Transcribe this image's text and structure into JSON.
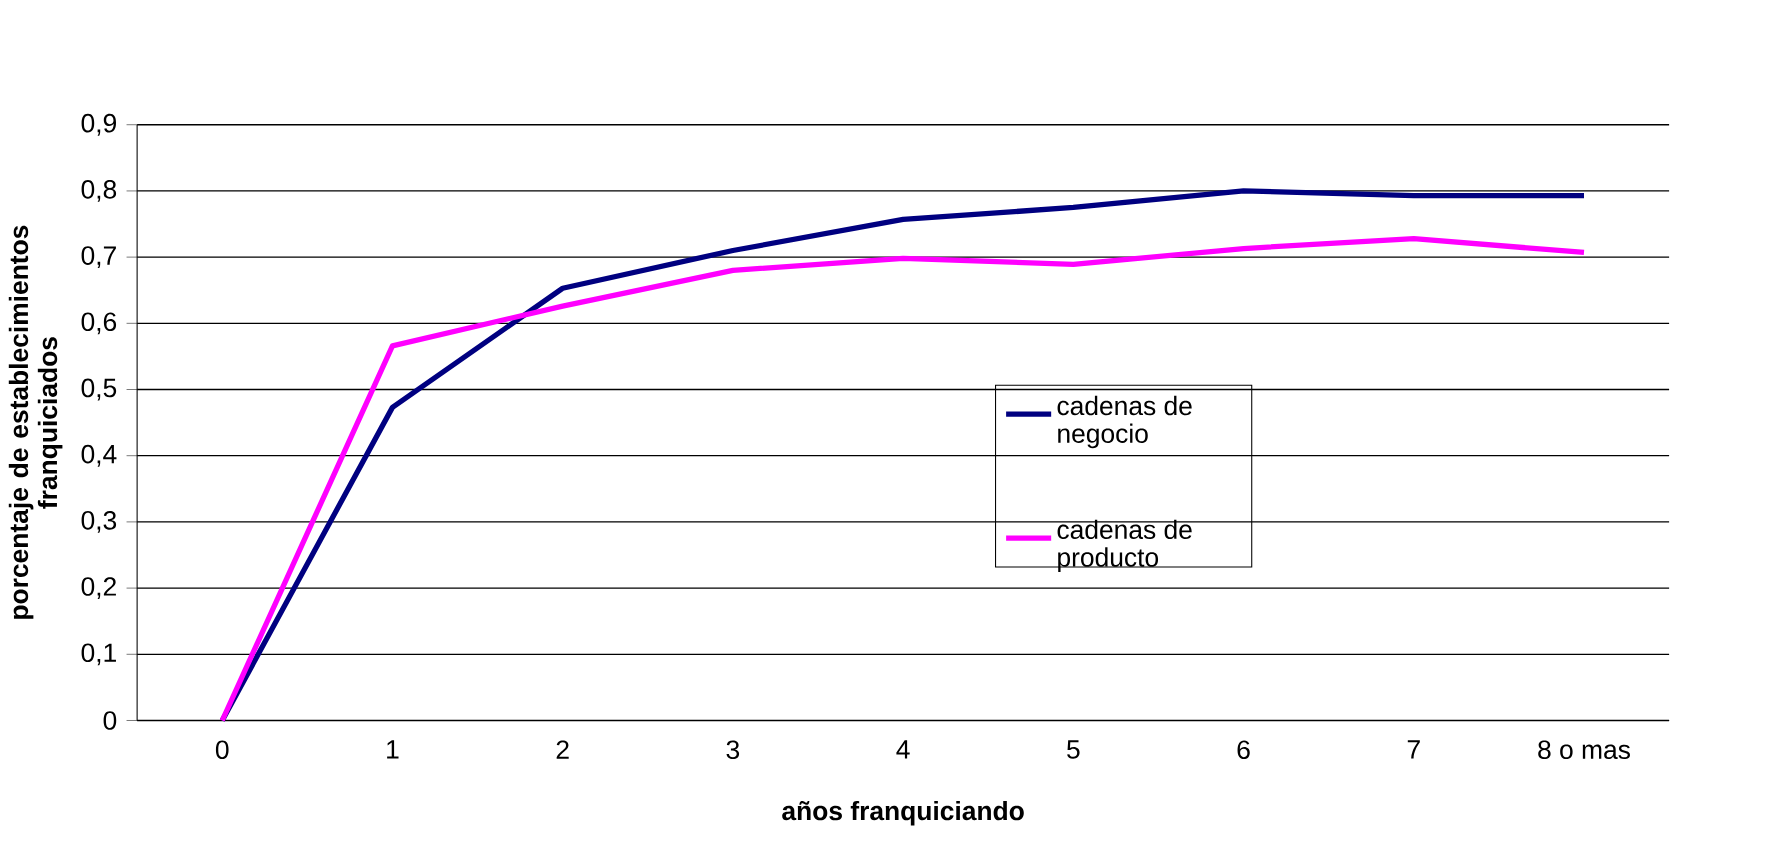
{
  "chart_data": {
    "type": "line",
    "xlabel": "años franquiciando",
    "ylabel": "porcentaje de establecimientos franquiciados",
    "categories": [
      "0",
      "1",
      "2",
      "3",
      "4",
      "5",
      "6",
      "7",
      "8 o mas"
    ],
    "series": [
      {
        "name": "cadenas de negocio",
        "color": "#000080",
        "values": [
          0,
          0.473,
          0.653,
          0.71,
          0.757,
          0.775,
          0.8,
          0.793,
          0.793
        ]
      },
      {
        "name": "cadenas de producto",
        "color": "#ff00ff",
        "values": [
          0,
          0.566,
          0.626,
          0.68,
          0.698,
          0.689,
          0.713,
          0.728,
          0.707
        ]
      }
    ],
    "ylim": [
      0,
      0.9
    ],
    "yticks": [
      {
        "value": 0,
        "label": "0"
      },
      {
        "value": 0.1,
        "label": "0,1"
      },
      {
        "value": 0.2,
        "label": "0,2"
      },
      {
        "value": 0.3,
        "label": "0,3"
      },
      {
        "value": 0.4,
        "label": "0,4"
      },
      {
        "value": 0.5,
        "label": "0,5"
      },
      {
        "value": 0.6,
        "label": "0,6"
      },
      {
        "value": 0.7,
        "label": "0,7"
      },
      {
        "value": 0.8,
        "label": "0,8"
      },
      {
        "value": 0.9,
        "label": "0,9"
      }
    ],
    "grid": "y",
    "legend": "center"
  }
}
